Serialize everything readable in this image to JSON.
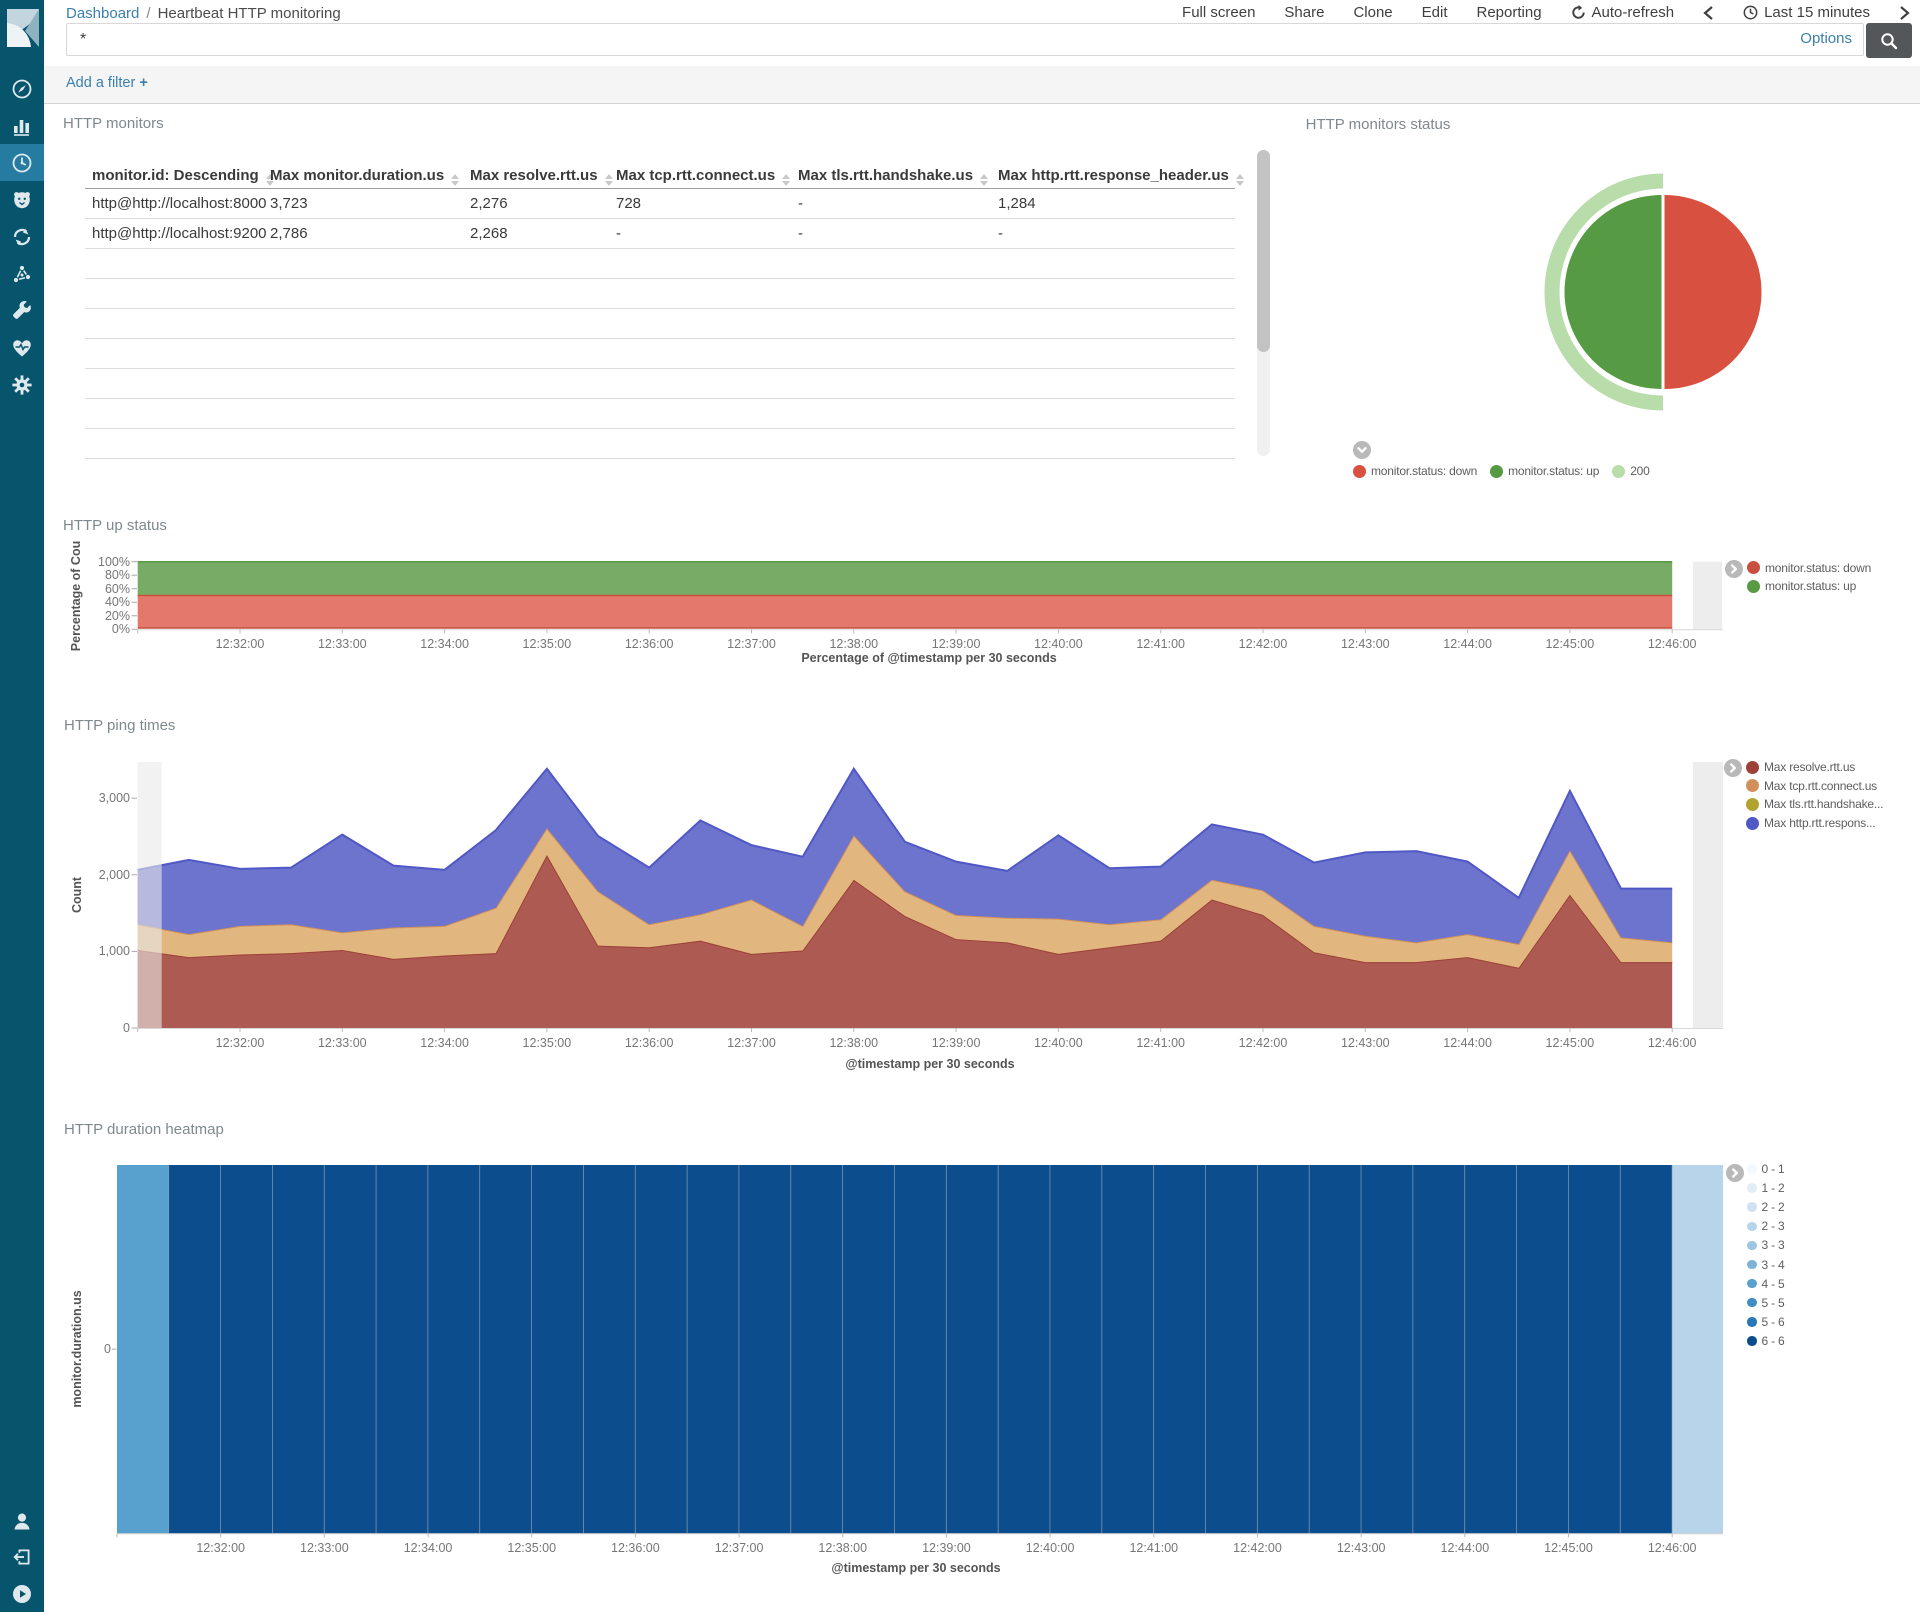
{
  "breadcrumb": {
    "root": "Dashboard",
    "separator": "/",
    "current": "Heartbeat HTTP monitoring"
  },
  "top_menu": {
    "items": [
      "Full screen",
      "Share",
      "Clone",
      "Edit",
      "Reporting"
    ],
    "auto_refresh": "Auto-refresh",
    "time_range": "Last 15 minutes"
  },
  "search": {
    "value": "*",
    "options_label": "Options"
  },
  "filter_bar": {
    "add_label": "Add a filter",
    "plus_icon": "+"
  },
  "sidebar": {
    "items": [
      {
        "icon": "compass",
        "name": "discover"
      },
      {
        "icon": "bar-chart",
        "name": "visualize"
      },
      {
        "icon": "gauge",
        "name": "dashboard",
        "active": true
      },
      {
        "icon": "lion",
        "name": "timelion"
      },
      {
        "icon": "sync",
        "name": "apm"
      },
      {
        "icon": "graph",
        "name": "graph"
      },
      {
        "icon": "wrench",
        "name": "dev-tools"
      },
      {
        "icon": "heartbeat",
        "name": "monitoring"
      },
      {
        "icon": "gear",
        "name": "management"
      }
    ],
    "bottom": [
      {
        "icon": "user",
        "name": "account"
      },
      {
        "icon": "logout",
        "name": "logout"
      },
      {
        "icon": "play-circle",
        "name": "collapse"
      }
    ]
  },
  "panels": {
    "monitors_title": "HTTP monitors",
    "status_title": "HTTP monitors status",
    "up_title": "HTTP up status",
    "ping_title": "HTTP ping times",
    "heatmap_title": "HTTP duration heatmap"
  },
  "table": {
    "columns": [
      "monitor.id: Descending",
      "Max monitor.duration.us",
      "Max resolve.rtt.us",
      "Max tcp.rtt.connect.us",
      "Max tls.rtt.handshake.us",
      "Max http.rtt.response_header.us"
    ],
    "rows": [
      [
        "http@http://localhost:8000",
        "3,723",
        "2,276",
        "728",
        "-",
        "1,284"
      ],
      [
        "http@http://localhost:9200",
        "2,786",
        "2,268",
        "-",
        "-",
        "-"
      ]
    ],
    "empty_row_count": 7
  },
  "time_ticks": [
    "12:32:00",
    "12:33:00",
    "12:34:00",
    "12:35:00",
    "12:36:00",
    "12:37:00",
    "12:38:00",
    "12:39:00",
    "12:40:00",
    "12:41:00",
    "12:42:00",
    "12:43:00",
    "12:44:00",
    "12:45:00",
    "12:46:00"
  ],
  "chart_data": [
    {
      "type": "pie",
      "title": "HTTP monitors status",
      "slices": [
        {
          "label": "monitor.status: down",
          "value": 50,
          "color": "#d8503f"
        },
        {
          "label": "monitor.status: up",
          "value": 50,
          "color": "#569a44"
        }
      ],
      "outer_ring": [
        {
          "label": "200",
          "value": 50,
          "color": "#b9dcab"
        }
      ],
      "legend": [
        {
          "label": "monitor.status: down",
          "color": "#d8503f"
        },
        {
          "label": "monitor.status: up",
          "color": "#569a44"
        },
        {
          "label": "200",
          "color": "#b9dcab"
        }
      ]
    },
    {
      "type": "area",
      "title": "HTTP up status",
      "xlabel": "Percentage of @timestamp per 30 seconds",
      "ylabel": "Percentage of Cou",
      "ylim": [
        0,
        100
      ],
      "yticks": [
        "0%",
        "20%",
        "40%",
        "60%",
        "80%",
        "100%"
      ],
      "x_range": [
        "12:31:00",
        "12:46:00"
      ],
      "series": [
        {
          "name": "monitor.status: down",
          "color": "#c9503e",
          "fill": "#e4786d",
          "band_percent": [
            2,
            50
          ]
        },
        {
          "name": "monitor.status: up",
          "color": "#569a44",
          "fill": "#77ab66",
          "band_percent": [
            50,
            100
          ]
        }
      ]
    },
    {
      "type": "area",
      "stacked": true,
      "title": "HTTP ping times",
      "xlabel": "@timestamp per 30 seconds",
      "ylabel": "Count",
      "ylim": [
        0,
        3480
      ],
      "yticks": [
        "0",
        "1,000",
        "2,000",
        "3,000"
      ],
      "x_start": "12:31:00",
      "x_step_seconds": 30,
      "series": [
        {
          "name": "Max resolve.rtt.us",
          "color": "#9c4038",
          "fill": "#ad5a52",
          "values": [
            1019,
            925,
            959,
            977,
            1019,
            903,
            946,
            977,
            2258,
            1075,
            1054,
            1140,
            968,
            1011,
            1935,
            1462,
            1161,
            1118,
            968,
            1054,
            1140,
            1677,
            1475,
            989,
            860,
            860,
            925,
            787,
            1742,
            860,
            860
          ]
        },
        {
          "name": "Max tcp.rtt.connect.us",
          "color": "#d1905a",
          "fill": "#e2b77f",
          "values": [
            336,
            301,
            374,
            378,
            229,
            409,
            387,
            593,
            352,
            710,
            301,
            344,
            709,
            322,
            581,
            323,
            314,
            322,
            460,
            301,
            279,
            258,
            322,
            344,
            344,
            258,
            301,
            310,
            580,
            323,
            258
          ]
        },
        {
          "name": "Max tls.rtt.handshake...",
          "color": "#b0a42e",
          "fill": "#b0a42e",
          "values": [
            0,
            0,
            0,
            0,
            0,
            0,
            0,
            0,
            0,
            0,
            0,
            0,
            0,
            0,
            0,
            0,
            0,
            0,
            0,
            0,
            0,
            0,
            0,
            0,
            0,
            0,
            0,
            0,
            0,
            0,
            0
          ]
        },
        {
          "name": "Max http.rtt.respons...",
          "color": "#5058c5",
          "fill": "#6c74ce",
          "values": [
            710,
            968,
            744,
            739,
            1277,
            808,
            732,
            1011,
            774,
            722,
            739,
            1225,
            710,
            903,
            868,
            645,
            697,
            611,
            1088,
            731,
            688,
            722,
            727,
            826,
            1088,
            1191,
            946,
            602,
            774,
            636,
            701
          ]
        }
      ]
    },
    {
      "type": "heatmap",
      "title": "HTTP duration heatmap",
      "xlabel": "@timestamp per 30 seconds",
      "ylabel": "monitor.duration.us",
      "row_label": "0",
      "legend": [
        {
          "label": "0 - 1",
          "color": "#f4f9fd"
        },
        {
          "label": "1 - 2",
          "color": "#e2edf8"
        },
        {
          "label": "2 - 2",
          "color": "#cfe1f2"
        },
        {
          "label": "2 - 3",
          "color": "#b7d4ea"
        },
        {
          "label": "3 - 3",
          "color": "#9cc6e1"
        },
        {
          "label": "3 - 4",
          "color": "#7eb3d8"
        },
        {
          "label": "4 - 5",
          "color": "#58a0cd"
        },
        {
          "label": "5 - 5",
          "color": "#3d8ec4"
        },
        {
          "label": "5 - 6",
          "color": "#2678b6"
        },
        {
          "label": "6 - 6",
          "color": "#0c4d8d"
        }
      ],
      "cell_bins": [
        6,
        9,
        9,
        9,
        9,
        9,
        9,
        9,
        9,
        9,
        9,
        9,
        9,
        9,
        9,
        9,
        9,
        9,
        9,
        9,
        9,
        9,
        9,
        9,
        9,
        9,
        9,
        9,
        9,
        9,
        3
      ]
    }
  ]
}
